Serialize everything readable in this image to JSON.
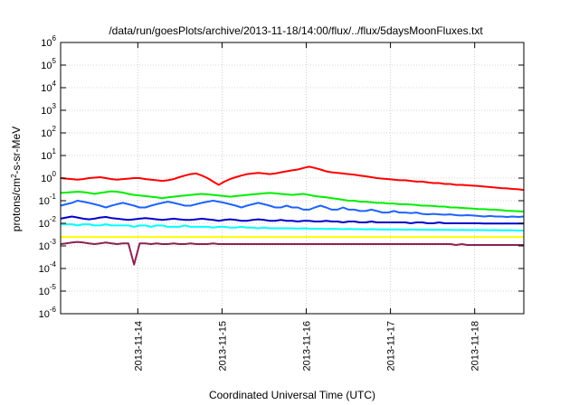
{
  "chart_data": {
    "type": "line",
    "title": "/data/run/goesPlots/archive/2013-11-18/14:00/flux/../flux/5daysMoonFluxes.txt",
    "xlabel": "Coordinated Universal Time (UTC)",
    "ylabel_parts": {
      "base": "protons/cm",
      "sup": "2",
      "rest": "-s-sr-MeV"
    },
    "y_scale": "log",
    "ylim": [
      1e-06,
      1000000.0
    ],
    "y_ticks": [
      {
        "value": 1e-06,
        "base": "10",
        "exp": "-6"
      },
      {
        "value": 1e-05,
        "base": "10",
        "exp": "-5"
      },
      {
        "value": 0.0001,
        "base": "10",
        "exp": "-4"
      },
      {
        "value": 0.001,
        "base": "10",
        "exp": "-3"
      },
      {
        "value": 0.01,
        "base": "10",
        "exp": "-2"
      },
      {
        "value": 0.1,
        "base": "10",
        "exp": "-1"
      },
      {
        "value": 1,
        "base": "10",
        "exp": "0"
      },
      {
        "value": 10,
        "base": "10",
        "exp": "1"
      },
      {
        "value": 100,
        "base": "10",
        "exp": "2"
      },
      {
        "value": 1000,
        "base": "10",
        "exp": "3"
      },
      {
        "value": 10000,
        "base": "10",
        "exp": "4"
      },
      {
        "value": 100000,
        "base": "10",
        "exp": "5"
      },
      {
        "value": 1000000,
        "base": "10",
        "exp": "6"
      }
    ],
    "xlim": [
      "2013-11-13 02:00",
      "2013-11-18 14:00"
    ],
    "x_ticks": [
      "2013-11-14",
      "2013-11-15",
      "2013-11-16",
      "2013-11-17",
      "2013-11-18"
    ],
    "grid": true,
    "series": [
      {
        "color": "#ff0000",
        "values": [
          1.0,
          0.95,
          0.9,
          0.85,
          0.9,
          1.0,
          1.05,
          1.1,
          1.0,
          0.9,
          0.85,
          0.9,
          0.95,
          1.0,
          1.0,
          0.9,
          0.85,
          0.8,
          0.75,
          0.8,
          0.9,
          1.1,
          1.3,
          1.5,
          1.6,
          1.3,
          1.0,
          0.7,
          0.5,
          0.7,
          0.9,
          1.1,
          1.3,
          1.5,
          1.6,
          1.7,
          1.6,
          1.5,
          1.6,
          1.8,
          2.0,
          2.2,
          2.4,
          2.8,
          3.2,
          2.8,
          2.4,
          2.0,
          1.8,
          1.7,
          1.6,
          1.5,
          1.4,
          1.3,
          1.2,
          1.1,
          1.0,
          0.95,
          0.9,
          0.85,
          0.8,
          0.8,
          0.75,
          0.7,
          0.7,
          0.65,
          0.6,
          0.6,
          0.55,
          0.55,
          0.5,
          0.5,
          0.48,
          0.46,
          0.45,
          0.42,
          0.4,
          0.38,
          0.36,
          0.35,
          0.33,
          0.32,
          0.3
        ]
      },
      {
        "color": "#00ee00",
        "values": [
          0.22,
          0.23,
          0.24,
          0.25,
          0.24,
          0.22,
          0.2,
          0.22,
          0.24,
          0.26,
          0.25,
          0.23,
          0.2,
          0.18,
          0.17,
          0.16,
          0.15,
          0.14,
          0.13,
          0.14,
          0.15,
          0.16,
          0.17,
          0.18,
          0.19,
          0.2,
          0.19,
          0.18,
          0.17,
          0.16,
          0.15,
          0.16,
          0.17,
          0.18,
          0.19,
          0.2,
          0.21,
          0.22,
          0.21,
          0.2,
          0.19,
          0.18,
          0.19,
          0.2,
          0.18,
          0.16,
          0.15,
          0.14,
          0.13,
          0.12,
          0.11,
          0.1,
          0.1,
          0.09,
          0.09,
          0.085,
          0.08,
          0.08,
          0.075,
          0.075,
          0.07,
          0.07,
          0.068,
          0.065,
          0.06,
          0.06,
          0.058,
          0.055,
          0.055,
          0.05,
          0.05,
          0.048,
          0.046,
          0.045,
          0.043,
          0.042,
          0.04,
          0.04,
          0.038,
          0.036,
          0.035,
          0.034,
          0.033
        ]
      },
      {
        "color": "#1e64ff",
        "values": [
          0.06,
          0.07,
          0.08,
          0.1,
          0.09,
          0.08,
          0.07,
          0.06,
          0.05,
          0.06,
          0.07,
          0.08,
          0.07,
          0.06,
          0.05,
          0.05,
          0.06,
          0.07,
          0.08,
          0.09,
          0.08,
          0.07,
          0.06,
          0.06,
          0.07,
          0.08,
          0.09,
          0.1,
          0.09,
          0.08,
          0.07,
          0.06,
          0.05,
          0.06,
          0.07,
          0.08,
          0.07,
          0.06,
          0.05,
          0.05,
          0.06,
          0.05,
          0.05,
          0.04,
          0.04,
          0.05,
          0.06,
          0.05,
          0.04,
          0.04,
          0.05,
          0.04,
          0.04,
          0.035,
          0.035,
          0.04,
          0.035,
          0.03,
          0.03,
          0.035,
          0.03,
          0.03,
          0.028,
          0.03,
          0.026,
          0.025,
          0.026,
          0.025,
          0.024,
          0.025,
          0.023,
          0.022,
          0.023,
          0.022,
          0.021,
          0.02,
          0.021,
          0.02,
          0.02,
          0.019,
          0.02,
          0.019,
          0.02
        ]
      },
      {
        "color": "#00ffff",
        "values": [
          0.009,
          0.009,
          0.009,
          0.008,
          0.009,
          0.009,
          0.008,
          0.008,
          0.009,
          0.008,
          0.008,
          0.008,
          0.008,
          0.007,
          0.008,
          0.008,
          0.007,
          0.008,
          0.008,
          0.007,
          0.007,
          0.007,
          0.008,
          0.007,
          0.007,
          0.007,
          0.007,
          0.0065,
          0.007,
          0.007,
          0.0065,
          0.0065,
          0.007,
          0.0065,
          0.0065,
          0.006,
          0.0065,
          0.006,
          0.006,
          0.006,
          0.006,
          0.006,
          0.0058,
          0.006,
          0.0058,
          0.0057,
          0.0058,
          0.0056,
          0.0057,
          0.0056,
          0.0055,
          0.0056,
          0.0055,
          0.0055,
          0.0054,
          0.0055,
          0.0054,
          0.0053,
          0.0054,
          0.0053,
          0.0053,
          0.0052,
          0.0053,
          0.0052,
          0.0052,
          0.0051,
          0.0052,
          0.0051,
          0.0051,
          0.0051,
          0.005,
          0.0051,
          0.005,
          0.005,
          0.005,
          0.005,
          0.0049,
          0.005,
          0.0049,
          0.0049,
          0.0049,
          0.0048,
          0.0048
        ]
      },
      {
        "color": "#0000cc",
        "values": [
          0.016,
          0.018,
          0.02,
          0.018,
          0.016,
          0.015,
          0.016,
          0.018,
          0.019,
          0.017,
          0.016,
          0.015,
          0.014,
          0.015,
          0.016,
          0.017,
          0.016,
          0.015,
          0.014,
          0.015,
          0.016,
          0.015,
          0.014,
          0.014,
          0.015,
          0.016,
          0.015,
          0.014,
          0.013,
          0.014,
          0.015,
          0.014,
          0.013,
          0.013,
          0.014,
          0.015,
          0.014,
          0.013,
          0.013,
          0.014,
          0.013,
          0.013,
          0.012,
          0.013,
          0.013,
          0.012,
          0.012,
          0.013,
          0.012,
          0.012,
          0.011,
          0.012,
          0.012,
          0.011,
          0.011,
          0.012,
          0.011,
          0.011,
          0.011,
          0.011,
          0.011,
          0.011,
          0.01,
          0.011,
          0.011,
          0.01,
          0.01,
          0.011,
          0.01,
          0.01,
          0.01,
          0.01,
          0.01,
          0.01,
          0.01,
          0.0098,
          0.0098,
          0.0098,
          0.0098,
          0.0097,
          0.0097,
          0.0097,
          0.0097
        ]
      },
      {
        "color": "#ffff00",
        "values": [
          0.0025,
          0.0025,
          0.0025,
          0.0025,
          0.0025,
          0.0025,
          0.0025,
          0.0025,
          0.0025,
          0.0025,
          0.0025,
          0.0025,
          0.0025,
          0.0025,
          0.0025,
          0.0025,
          0.0025,
          0.0025,
          0.0025,
          0.0025,
          0.0025,
          0.0025,
          0.0025,
          0.0025,
          0.0025,
          0.0025,
          0.0025,
          0.0025,
          0.0025,
          0.0025,
          0.0025,
          0.0025,
          0.0025,
          0.0025,
          0.0025,
          0.0025,
          0.0025,
          0.0025,
          0.0025,
          0.0025,
          0.0025,
          0.0025,
          0.0025,
          0.0025,
          0.0025,
          0.0025,
          0.0025,
          0.0025,
          0.0025,
          0.0025,
          0.0025,
          0.0025,
          0.0025,
          0.0025,
          0.0025,
          0.0025,
          0.0025,
          0.0025,
          0.0025,
          0.0025,
          0.0025,
          0.0025,
          0.0025,
          0.0025,
          0.0025,
          0.0025,
          0.0025,
          0.0025,
          0.0025,
          0.0025,
          0.0025,
          0.0025,
          0.0025,
          0.0025,
          0.0025,
          0.0025,
          0.0025,
          0.0025,
          0.0025,
          0.0025,
          0.0025,
          0.0025,
          0.0025
        ]
      },
      {
        "color": "#8b2252",
        "values": [
          0.0012,
          0.0013,
          0.0014,
          0.0015,
          0.0014,
          0.0013,
          0.0012,
          0.0013,
          0.0014,
          0.0013,
          0.0012,
          0.0013,
          0.0013,
          0.00015,
          0.0013,
          0.0013,
          0.0012,
          0.0013,
          0.0012,
          0.0012,
          0.0013,
          0.0012,
          0.0012,
          0.0013,
          0.0012,
          0.0012,
          0.0012,
          0.0013,
          0.0012,
          0.0012,
          0.0012,
          0.0012,
          0.0012,
          0.0012,
          0.0012,
          0.0012,
          0.0012,
          0.0012,
          0.0012,
          0.0012,
          0.0012,
          0.0012,
          0.0012,
          0.0012,
          0.0012,
          0.0012,
          0.0012,
          0.0012,
          0.0012,
          0.0012,
          0.0012,
          0.0012,
          0.0012,
          0.0012,
          0.0012,
          0.0012,
          0.0012,
          0.0012,
          0.0012,
          0.0012,
          0.0012,
          0.0012,
          0.0012,
          0.0012,
          0.0012,
          0.0012,
          0.0012,
          0.0012,
          0.0012,
          0.0012,
          0.0011,
          0.0012,
          0.0011,
          0.0011,
          0.0011,
          0.0011,
          0.0011,
          0.0011,
          0.0011,
          0.0011,
          0.0011,
          0.0011,
          0.0011
        ]
      }
    ]
  }
}
